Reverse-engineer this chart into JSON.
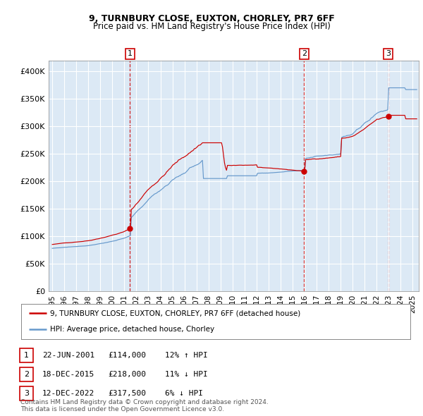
{
  "title": "9, TURNBURY CLOSE, EUXTON, CHORLEY, PR7 6FF",
  "subtitle": "Price paid vs. HM Land Registry's House Price Index (HPI)",
  "ylim": [
    0,
    420000
  ],
  "yticks": [
    0,
    50000,
    100000,
    150000,
    200000,
    250000,
    300000,
    350000,
    400000
  ],
  "ytick_labels": [
    "£0",
    "£50K",
    "£100K",
    "£150K",
    "£200K",
    "£250K",
    "£300K",
    "£350K",
    "£400K"
  ],
  "background_color": "#dce9f5",
  "red_line_color": "#cc0000",
  "blue_line_color": "#6699cc",
  "sale_dates": [
    2001.47,
    2015.96,
    2022.95
  ],
  "sale_prices": [
    114000,
    218000,
    317500
  ],
  "sale_labels": [
    "1",
    "2",
    "3"
  ],
  "legend_entries": [
    "9, TURNBURY CLOSE, EUXTON, CHORLEY, PR7 6FF (detached house)",
    "HPI: Average price, detached house, Chorley"
  ],
  "table_rows": [
    [
      "1",
      "22-JUN-2001",
      "£114,000",
      "12% ↑ HPI"
    ],
    [
      "2",
      "18-DEC-2015",
      "£218,000",
      "11% ↓ HPI"
    ],
    [
      "3",
      "12-DEC-2022",
      "£317,500",
      "6% ↓ HPI"
    ]
  ],
  "footnote": "Contains HM Land Registry data © Crown copyright and database right 2024.\nThis data is licensed under the Open Government Licence v3.0.",
  "xlim_start": 1994.7,
  "xlim_end": 2025.5
}
